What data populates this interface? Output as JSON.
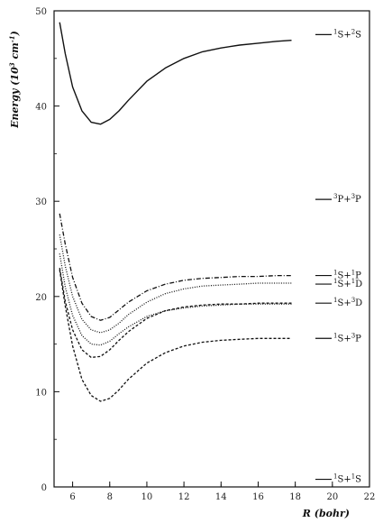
{
  "chart_data": {
    "type": "line",
    "xlabel": "R (bohr)",
    "ylabel": "Energy (10^3 cm^-1)",
    "ylabel_parts": {
      "main": "Energy (10",
      "exp1": "3",
      "mid": " cm",
      "exp2": "-1",
      "close": ")"
    },
    "xlim": [
      5,
      22
    ],
    "ylim": [
      0,
      50
    ],
    "xticks": [
      6,
      8,
      10,
      12,
      14,
      16,
      18,
      20,
      22
    ],
    "yticks": [
      0,
      10,
      20,
      30,
      40,
      50
    ],
    "grid": false,
    "line_color": "#111111",
    "series": [
      {
        "style": "solid",
        "x": [
          5.3,
          5.6,
          6.0,
          6.5,
          7.0,
          7.5,
          8.0,
          8.5,
          9.0,
          10.0,
          11.0,
          12.0,
          13.0,
          14.0,
          15.0,
          16.0,
          17.0,
          17.8
        ],
        "y": [
          48.8,
          45.5,
          42.0,
          39.5,
          38.3,
          38.1,
          38.6,
          39.5,
          40.6,
          42.6,
          44.0,
          45.0,
          45.7,
          46.1,
          46.4,
          46.6,
          46.8,
          46.9
        ]
      },
      {
        "style": "dashdot",
        "x": [
          5.3,
          5.6,
          6.0,
          6.5,
          7.0,
          7.5,
          8.0,
          8.5,
          9.0,
          10.0,
          11.0,
          12.0,
          13.0,
          14.0,
          15.0,
          16.0,
          17.0,
          17.8
        ],
        "y": [
          28.7,
          25.5,
          22.0,
          19.3,
          17.9,
          17.5,
          17.8,
          18.6,
          19.4,
          20.6,
          21.3,
          21.7,
          21.9,
          22.0,
          22.1,
          22.1,
          22.2,
          22.2
        ]
      },
      {
        "style": "dotted",
        "x": [
          5.3,
          5.6,
          6.0,
          6.5,
          7.0,
          7.5,
          8.0,
          8.5,
          9.0,
          10.0,
          11.0,
          12.0,
          13.0,
          14.0,
          15.0,
          16.0,
          17.0,
          17.8
        ],
        "y": [
          26.5,
          23.2,
          20.0,
          17.6,
          16.5,
          16.2,
          16.5,
          17.2,
          18.1,
          19.4,
          20.3,
          20.8,
          21.1,
          21.2,
          21.3,
          21.4,
          21.4,
          21.4
        ]
      },
      {
        "style": "dotted",
        "x": [
          5.3,
          5.6,
          6.0,
          6.5,
          7.0,
          7.5,
          8.0,
          8.5,
          9.0,
          10.0,
          11.0,
          12.0,
          13.0,
          14.0,
          15.0,
          16.0,
          17.0,
          17.8
        ],
        "y": [
          24.5,
          21.0,
          18.0,
          15.9,
          15.0,
          14.9,
          15.3,
          16.1,
          16.8,
          17.9,
          18.5,
          18.8,
          19.0,
          19.1,
          19.2,
          19.2,
          19.2,
          19.2
        ]
      },
      {
        "style": "dashed",
        "x": [
          5.3,
          5.6,
          6.0,
          6.5,
          7.0,
          7.5,
          8.0,
          8.5,
          9.0,
          10.0,
          11.0,
          12.0,
          13.0,
          14.0,
          15.0,
          16.0,
          17.0,
          17.8
        ],
        "y": [
          23.0,
          19.5,
          16.5,
          14.4,
          13.6,
          13.7,
          14.4,
          15.4,
          16.3,
          17.7,
          18.5,
          18.9,
          19.1,
          19.2,
          19.2,
          19.3,
          19.3,
          19.3
        ]
      },
      {
        "style": "dashed",
        "x": [
          5.3,
          5.6,
          6.0,
          6.5,
          7.0,
          7.5,
          8.0,
          8.5,
          9.0,
          10.0,
          11.0,
          12.0,
          13.0,
          14.0,
          15.0,
          16.0,
          17.0,
          17.8
        ],
        "y": [
          22.8,
          19.0,
          14.8,
          11.3,
          9.6,
          9.0,
          9.3,
          10.2,
          11.3,
          13.0,
          14.1,
          14.8,
          15.2,
          15.4,
          15.5,
          15.6,
          15.6,
          15.6
        ]
      }
    ],
    "asymptotes": [
      {
        "label": {
          "s1": "1",
          "t1": "S+",
          "s2": "2",
          "t2": "S"
        },
        "y": 47.5
      },
      {
        "label": {
          "s1": "3",
          "t1": "P+",
          "s2": "3",
          "t2": "P"
        },
        "y": 30.2
      },
      {
        "label": {
          "s1": "1",
          "t1": "S+",
          "s2": "1",
          "t2": "P"
        },
        "y": 22.2
      },
      {
        "label": {
          "s1": "1",
          "t1": "S+",
          "s2": "1",
          "t2": "D"
        },
        "y": 21.3
      },
      {
        "label": {
          "s1": "1",
          "t1": "S+",
          "s2": "3",
          "t2": "D"
        },
        "y": 19.3
      },
      {
        "label": {
          "s1": "1",
          "t1": "S+",
          "s2": "3",
          "t2": "P"
        },
        "y": 15.6
      },
      {
        "label": {
          "s1": "1",
          "t1": "S+",
          "s2": "1",
          "t2": "S"
        },
        "y": 0.8
      }
    ]
  }
}
